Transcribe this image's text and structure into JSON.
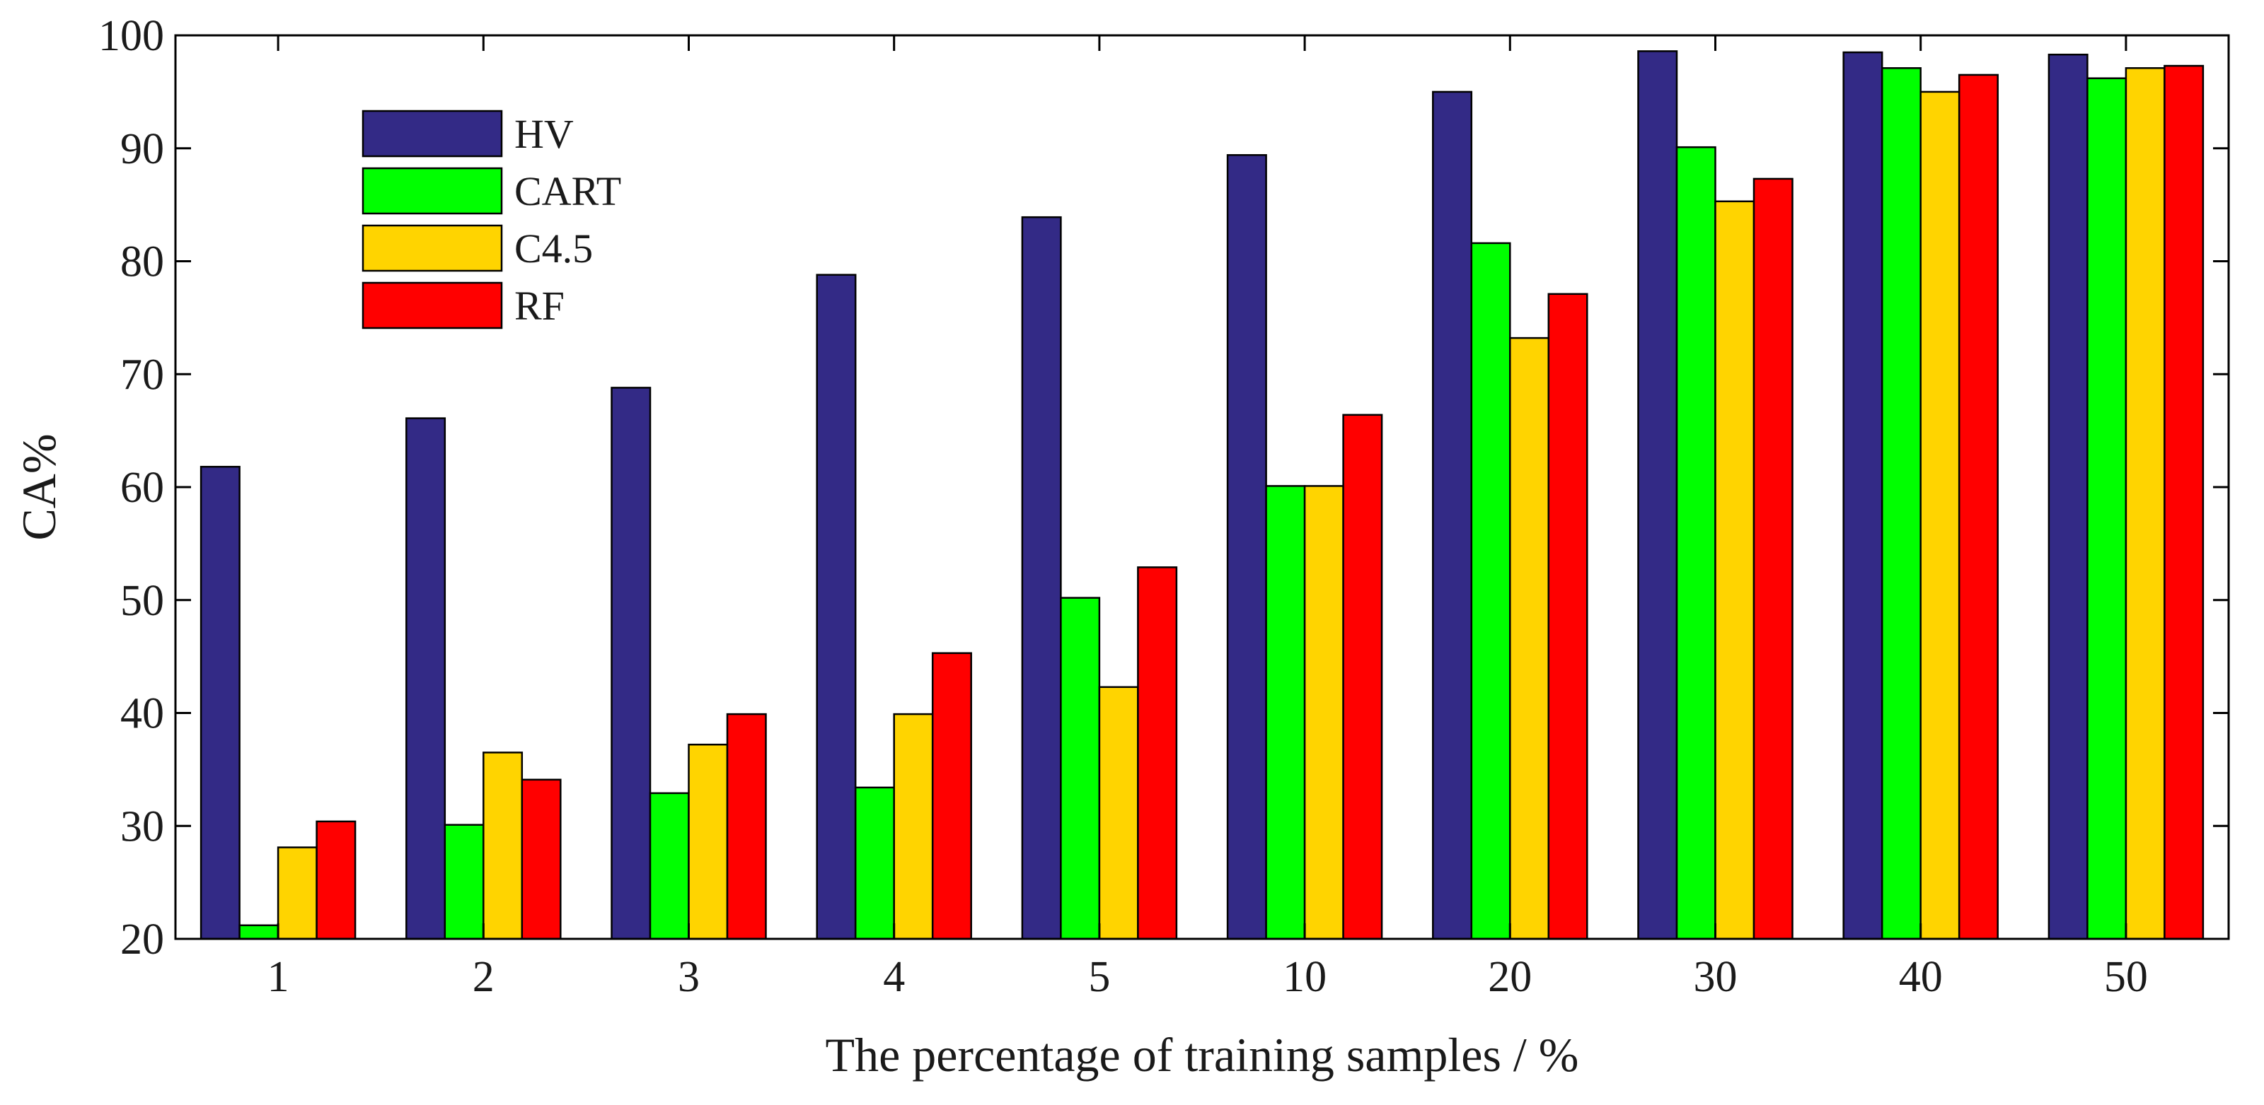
{
  "chart_data": {
    "type": "bar",
    "title": "",
    "xlabel": "The percentage of training samples / %",
    "ylabel": "CA%",
    "categories": [
      "1",
      "2",
      "3",
      "4",
      "5",
      "10",
      "20",
      "30",
      "40",
      "50"
    ],
    "ylim": [
      20,
      100
    ],
    "yticks": [
      20,
      30,
      40,
      50,
      60,
      70,
      80,
      90,
      100
    ],
    "grid": false,
    "legend_position": "top-left",
    "series": [
      {
        "name": "HV",
        "color": "#332a86",
        "values": [
          61.8,
          66.1,
          68.8,
          78.8,
          83.9,
          89.4,
          95.0,
          98.6,
          98.5,
          98.3
        ]
      },
      {
        "name": "CART",
        "color": "#00ff00",
        "values": [
          21.2,
          30.1,
          32.9,
          33.4,
          50.2,
          60.1,
          81.6,
          90.1,
          97.1,
          96.2
        ]
      },
      {
        "name": "C4.5",
        "color": "#ffd400",
        "values": [
          28.1,
          36.5,
          37.2,
          39.9,
          42.3,
          60.1,
          73.2,
          85.3,
          95.0,
          97.1
        ]
      },
      {
        "name": "RF",
        "color": "#ff0000",
        "values": [
          30.4,
          34.1,
          39.9,
          45.3,
          52.9,
          66.4,
          77.1,
          87.3,
          96.5,
          97.3
        ]
      }
    ]
  }
}
